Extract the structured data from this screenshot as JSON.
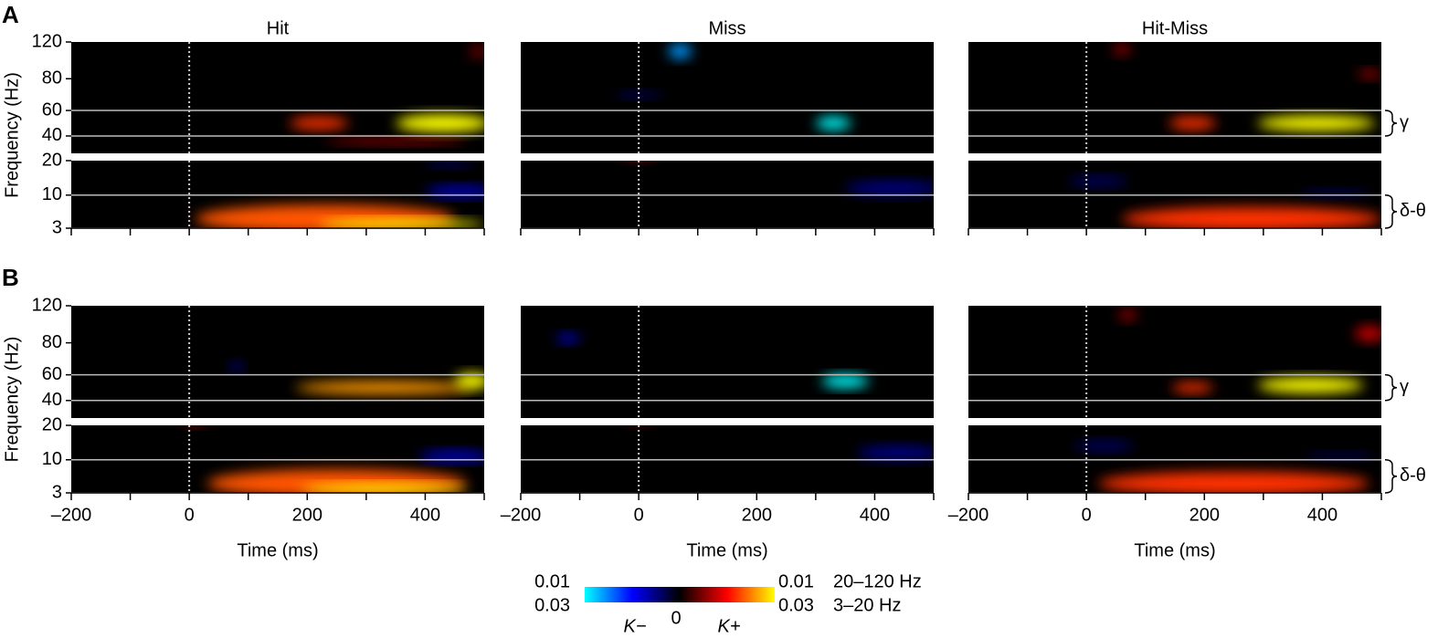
{
  "chart_data": {
    "type": "time-frequency",
    "rows": [
      "A",
      "B"
    ],
    "columns": [
      "Hit",
      "Miss",
      "Hit-Miss"
    ],
    "xlabel": "Time (ms)",
    "ylabel": "Frequency (Hz)",
    "xlim": [
      -200,
      500
    ],
    "xticks": [
      {
        "value": -200,
        "label": "–200"
      },
      0,
      200,
      400
    ],
    "xminor": [
      -100,
      100,
      300,
      500
    ],
    "bands": {
      "upper": {
        "ylim": [
          30,
          120
        ],
        "yticks": [
          40,
          60,
          80,
          120
        ],
        "lines": [
          40,
          60
        ],
        "band_label": "γ"
      },
      "lower": {
        "ylim": [
          3,
          20
        ],
        "yticks": [
          3,
          10,
          20
        ],
        "lines": [
          3,
          10
        ],
        "band_label": "δ-θ"
      }
    },
    "colormap": [
      "#00ffff",
      "#0000ff",
      "#000000",
      "#ff0000",
      "#ffff00"
    ],
    "colorbar": {
      "left_label": "K−",
      "center_label": 0,
      "right_label": "K+",
      "scales": [
        {
          "range": "20–120 Hz",
          "limit": 0.01
        },
        {
          "range": "3–20 Hz",
          "limit": 0.03
        }
      ]
    },
    "panels": [
      [
        {
          "upper": [
            {
              "time": 220,
              "freq": 50,
              "dt": 50,
              "df": 5,
              "k": 0.006
            },
            {
              "time": 430,
              "freq": 50,
              "dt": 80,
              "df": 7,
              "k": 0.012
            },
            {
              "time": 350,
              "freq": 37,
              "dt": 120,
              "df": 2,
              "k": 0.003
            },
            {
              "time": 490,
              "freq": 110,
              "dt": 15,
              "df": 8,
              "k": 0.002
            }
          ],
          "lower": [
            {
              "time": 230,
              "freq": 5,
              "dt": 220,
              "df": 3,
              "k": 0.02
            },
            {
              "time": 360,
              "freq": 3.8,
              "dt": 140,
              "df": 1,
              "k": 0.035
            },
            {
              "time": 460,
              "freq": 11,
              "dt": 60,
              "df": 1.5,
              "k": -0.012
            },
            {
              "time": 440,
              "freq": 19,
              "dt": 40,
              "df": 1,
              "k": -0.006
            }
          ]
        },
        {
          "upper": [
            {
              "time": 70,
              "freq": 110,
              "dt": 20,
              "df": 8,
              "k": -0.008
            },
            {
              "time": 330,
              "freq": 50,
              "dt": 30,
              "df": 5,
              "k": -0.012
            },
            {
              "time": 0,
              "freq": 70,
              "dt": 40,
              "df": 2,
              "k": -0.002
            }
          ],
          "lower": [
            {
              "time": 430,
              "freq": 12,
              "dt": 80,
              "df": 2,
              "k": -0.008
            },
            {
              "time": 0,
              "freq": 20,
              "dt": 30,
              "df": 0.5,
              "k": 0.006
            }
          ]
        },
        {
          "upper": [
            {
              "time": 180,
              "freq": 50,
              "dt": 40,
              "df": 5,
              "k": 0.006
            },
            {
              "time": 390,
              "freq": 50,
              "dt": 100,
              "df": 6,
              "k": 0.011
            },
            {
              "time": 60,
              "freq": 112,
              "dt": 15,
              "df": 6,
              "k": 0.003
            },
            {
              "time": 480,
              "freq": 85,
              "dt": 20,
              "df": 5,
              "k": 0.003
            }
          ],
          "lower": [
            {
              "time": 280,
              "freq": 5,
              "dt": 220,
              "df": 2.5,
              "k": 0.018
            },
            {
              "time": 20,
              "freq": 14,
              "dt": 50,
              "df": 1.5,
              "k": -0.006
            },
            {
              "time": 420,
              "freq": 10.5,
              "dt": 60,
              "df": 1,
              "k": -0.005
            }
          ]
        }
      ],
      [
        {
          "upper": [
            {
              "time": 330,
              "freq": 50,
              "dt": 150,
              "df": 5,
              "k": 0.008
            },
            {
              "time": 480,
              "freq": 55,
              "dt": 30,
              "df": 6,
              "k": 0.01
            },
            {
              "time": 80,
              "freq": 65,
              "dt": 10,
              "df": 3,
              "k": -0.003
            }
          ],
          "lower": [
            {
              "time": 250,
              "freq": 5,
              "dt": 220,
              "df": 3,
              "k": 0.02
            },
            {
              "time": 330,
              "freq": 3.8,
              "dt": 140,
              "df": 1,
              "k": 0.035
            },
            {
              "time": 450,
              "freq": 11,
              "dt": 60,
              "df": 1.5,
              "k": -0.012
            },
            {
              "time": 10,
              "freq": 20,
              "dt": 20,
              "df": 0.5,
              "k": 0.008
            }
          ]
        },
        {
          "upper": [
            {
              "time": -120,
              "freq": 85,
              "dt": 20,
              "df": 5,
              "k": -0.004
            },
            {
              "time": 350,
              "freq": 55,
              "dt": 40,
              "df": 5,
              "k": -0.01
            }
          ],
          "lower": [
            {
              "time": 440,
              "freq": 12,
              "dt": 70,
              "df": 2,
              "k": -0.008
            },
            {
              "time": 0,
              "freq": 20,
              "dt": 20,
              "df": 0.5,
              "k": 0.005
            }
          ]
        },
        {
          "upper": [
            {
              "time": 180,
              "freq": 50,
              "dt": 35,
              "df": 4,
              "k": 0.006
            },
            {
              "time": 380,
              "freq": 52,
              "dt": 90,
              "df": 6,
              "k": 0.012
            },
            {
              "time": 70,
              "freq": 110,
              "dt": 15,
              "df": 6,
              "k": 0.003
            },
            {
              "time": 480,
              "freq": 90,
              "dt": 25,
              "df": 8,
              "k": 0.004
            }
          ],
          "lower": [
            {
              "time": 250,
              "freq": 5,
              "dt": 230,
              "df": 2.5,
              "k": 0.018
            },
            {
              "time": 30,
              "freq": 14,
              "dt": 50,
              "df": 1.5,
              "k": -0.006
            },
            {
              "time": 430,
              "freq": 11,
              "dt": 60,
              "df": 1,
              "k": -0.005
            }
          ]
        }
      ]
    ]
  }
}
